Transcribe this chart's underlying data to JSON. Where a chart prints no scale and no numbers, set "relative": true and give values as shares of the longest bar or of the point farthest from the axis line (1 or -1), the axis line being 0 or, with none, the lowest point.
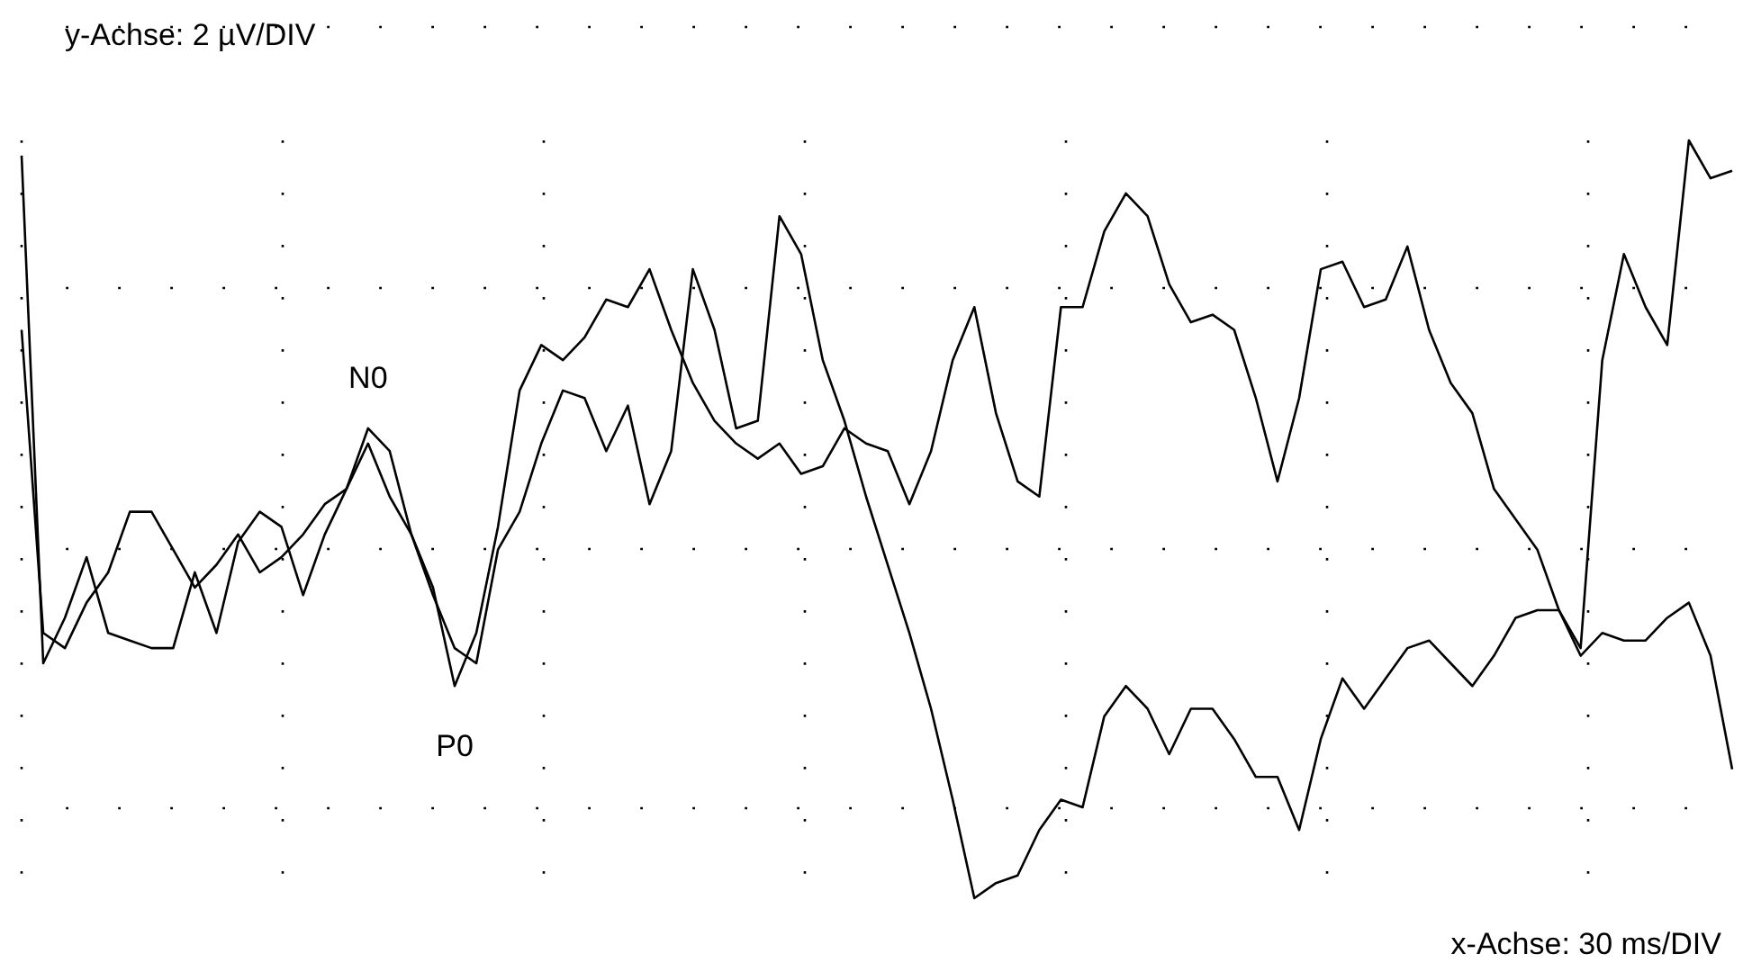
{
  "chart_data": {
    "type": "line",
    "relative": true,
    "grid": true,
    "line_style": "solid",
    "marker": "none",
    "annotations": [
      "y-Achse: 2 µV/DIV",
      "x-Achse: 30 ms/DIV",
      {
        "text": "N0",
        "y": 0.6
      },
      {
        "text": "P0",
        "y": 0.28
      }
    ],
    "categories": [
      null,
      null,
      null,
      null,
      null,
      null,
      null,
      null,
      null,
      null,
      null,
      null,
      null,
      null,
      null,
      null,
      null,
      null,
      null,
      null,
      null,
      null,
      null,
      null,
      null,
      null,
      null,
      null,
      null,
      null,
      null,
      null,
      null,
      null,
      null,
      null,
      null,
      null,
      null,
      null,
      null,
      null,
      null,
      null,
      null,
      null,
      null,
      null,
      null,
      null,
      null,
      null,
      null,
      null,
      null,
      null,
      null,
      null,
      null,
      null,
      null,
      null,
      null,
      null,
      null,
      null,
      null,
      null,
      null,
      null,
      null,
      null,
      null,
      null,
      null,
      null,
      null,
      null,
      null,
      null
    ],
    "series": [
      {
        "color": "#000000",
        "values": [
          0.98,
          0.31,
          0.37,
          0.45,
          0.35,
          0.34,
          0.33,
          0.33,
          0.43,
          0.35,
          0.47,
          0.51,
          0.49,
          0.4,
          0.48,
          0.54,
          0.6,
          0.53,
          0.48,
          0.41,
          0.28,
          0.35,
          0.49,
          0.67,
          0.73,
          0.71,
          0.74,
          0.79,
          0.78,
          0.83,
          0.75,
          0.68,
          0.63,
          0.6,
          0.58,
          0.6,
          0.56,
          0.57,
          0.62,
          0.6,
          0.59,
          0.52,
          0.59,
          0.71,
          0.78,
          0.64,
          0.55,
          0.53,
          0.78,
          0.78,
          0.88,
          0.93,
          0.9,
          0.81,
          0.76,
          0.77,
          0.75,
          0.66,
          0.55,
          0.66,
          0.83,
          0.84,
          0.78,
          0.79,
          0.86,
          0.75,
          0.68,
          0.64,
          0.54,
          0.5,
          0.46,
          0.38,
          0.33,
          0.71,
          0.85,
          0.78,
          0.73,
          1,
          0.95,
          0.96
        ]
      },
      {
        "color": "#000000",
        "values": [
          0.75,
          0.35,
          0.33,
          0.39,
          0.43,
          0.51,
          0.51,
          0.46,
          0.41,
          0.44,
          0.48,
          0.43,
          0.45,
          0.48,
          0.52,
          0.54,
          0.62,
          0.59,
          0.48,
          0.4,
          0.33,
          0.31,
          0.46,
          0.51,
          0.6,
          0.67,
          0.66,
          0.59,
          0.65,
          0.52,
          0.59,
          0.83,
          0.75,
          0.62,
          0.63,
          0.9,
          0.85,
          0.71,
          0.63,
          0.53,
          0.44,
          0.35,
          0.25,
          0.13,
          0,
          0.02,
          0.03,
          0.09,
          0.13,
          0.12,
          0.24,
          0.28,
          0.25,
          0.19,
          0.25,
          0.25,
          0.21,
          0.16,
          0.16,
          0.09,
          0.21,
          0.29,
          0.25,
          0.29,
          0.33,
          0.34,
          0.31,
          0.28,
          0.32,
          0.37,
          0.38,
          0.38,
          0.32,
          0.35,
          0.34,
          0.34,
          0.37,
          0.39,
          0.32,
          0.17
        ]
      }
    ]
  }
}
